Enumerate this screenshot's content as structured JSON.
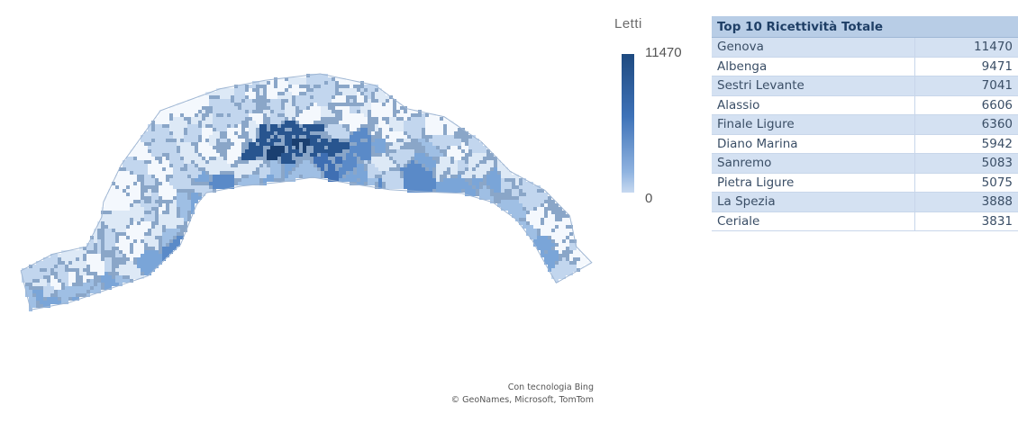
{
  "legend": {
    "title": "Letti",
    "max": "11470",
    "min": "0",
    "colors": {
      "dark": "#1e4a80",
      "mid": "#3e72b8",
      "light": "#c7d9f0"
    }
  },
  "table": {
    "title": "Top 10 Ricettività Totale",
    "rows": [
      {
        "name": "Genova",
        "value": "11470"
      },
      {
        "name": "Albenga",
        "value": "9471"
      },
      {
        "name": "Sestri Levante",
        "value": "7041"
      },
      {
        "name": "Alassio",
        "value": "6606"
      },
      {
        "name": "Finale Ligure",
        "value": "6360"
      },
      {
        "name": "Diano Marina",
        "value": "5942"
      },
      {
        "name": "Sanremo",
        "value": "5083"
      },
      {
        "name": "Pietra Ligure",
        "value": "5075"
      },
      {
        "name": "La Spezia",
        "value": "3888"
      },
      {
        "name": "Ceriale",
        "value": "3831"
      }
    ]
  },
  "attribution": {
    "line1": "Con tecnologia Bing",
    "line2": "© GeoNames, Microsoft, TomTom"
  },
  "map": {
    "palette": [
      "#f4f8fd",
      "#dde9f6",
      "#c2d6ee",
      "#9fbfe4",
      "#7aa5d8",
      "#5a8ac8",
      "#3f6fb3",
      "#28558f",
      "#1a3f70"
    ]
  }
}
